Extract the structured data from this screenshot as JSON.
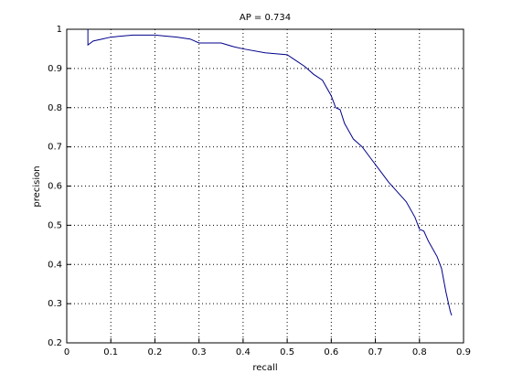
{
  "chart_data": {
    "type": "line",
    "title": "AP = 0.734",
    "x_label": "recall",
    "y_label": "precision",
    "x": [
      0.048,
      0.048,
      0.06,
      0.08,
      0.1,
      0.15,
      0.2,
      0.25,
      0.28,
      0.3,
      0.35,
      0.38,
      0.4,
      0.45,
      0.5,
      0.52,
      0.54,
      0.56,
      0.58,
      0.6,
      0.61,
      0.62,
      0.63,
      0.65,
      0.67,
      0.69,
      0.71,
      0.73,
      0.75,
      0.77,
      0.79,
      0.8,
      0.81,
      0.82,
      0.84,
      0.85,
      0.86,
      0.87,
      0.873
    ],
    "values": [
      1.0,
      0.96,
      0.97,
      0.975,
      0.98,
      0.985,
      0.985,
      0.98,
      0.975,
      0.965,
      0.965,
      0.955,
      0.95,
      0.94,
      0.935,
      0.92,
      0.905,
      0.885,
      0.87,
      0.83,
      0.8,
      0.795,
      0.76,
      0.72,
      0.7,
      0.67,
      0.64,
      0.61,
      0.585,
      0.56,
      0.52,
      0.49,
      0.485,
      0.46,
      0.42,
      0.39,
      0.33,
      0.28,
      0.27
    ],
    "color": "#00008b",
    "xlim": [
      0,
      0.9
    ],
    "xticks": [
      0,
      0.1,
      0.2,
      0.3,
      0.4,
      0.5,
      0.6,
      0.7,
      0.8,
      0.9
    ],
    "ylim": [
      0.2,
      1
    ],
    "yticks": [
      0.2,
      0.3,
      0.4,
      0.5,
      0.6,
      0.7,
      0.8,
      0.9,
      1
    ],
    "grid": true
  }
}
